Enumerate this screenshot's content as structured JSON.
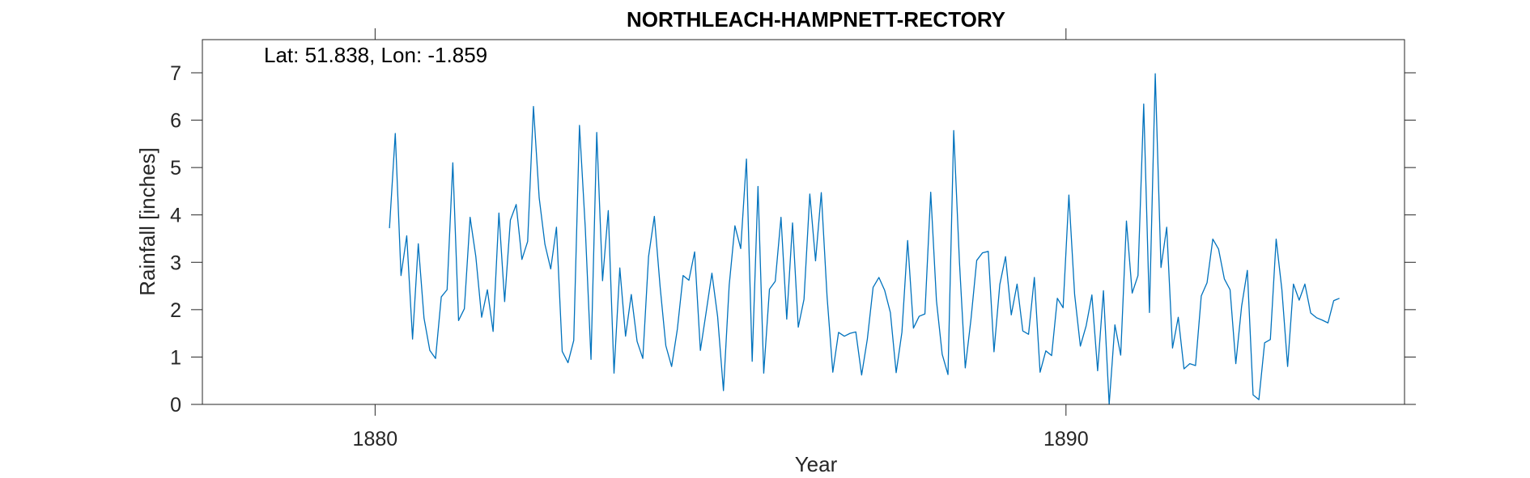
{
  "chart_data": {
    "type": "line",
    "title": "NORTHLEACH-HAMPNETT-RECTORY",
    "annotation": "Lat: 51.838, Lon: -1.859",
    "xlabel": "Year",
    "ylabel": "Rainfall [inches]",
    "xlim": [
      1877.5,
      1894.9
    ],
    "ylim": [
      0,
      7.7
    ],
    "xticks": [
      1880,
      1890
    ],
    "yticks": [
      0,
      1,
      2,
      3,
      4,
      5,
      6,
      7
    ],
    "grid": false,
    "colors": {
      "line": "#0072BD",
      "axes": "#262626"
    },
    "series": [
      {
        "x": [
          1880.208,
          1880.292,
          1880.375,
          1880.458,
          1880.542,
          1880.625,
          1880.708,
          1880.792,
          1880.875,
          1880.958,
          1881.042,
          1881.125,
          1881.208,
          1881.292,
          1881.375,
          1881.458,
          1881.542,
          1881.625,
          1881.708,
          1881.792,
          1881.875,
          1881.958,
          1882.042,
          1882.125,
          1882.208,
          1882.292,
          1882.375,
          1882.458,
          1882.542,
          1882.625,
          1882.708,
          1882.792,
          1882.875,
          1882.958,
          1883.042,
          1883.125,
          1883.208,
          1883.292,
          1883.375,
          1883.458,
          1883.542,
          1883.625,
          1883.708,
          1883.792,
          1883.875,
          1883.958,
          1884.042,
          1884.125,
          1884.208,
          1884.292,
          1884.375,
          1884.458,
          1884.542,
          1884.625,
          1884.708,
          1884.792,
          1884.875,
          1884.958,
          1885.042,
          1885.125,
          1885.208,
          1885.292,
          1885.375,
          1885.458,
          1885.542,
          1885.625,
          1885.708,
          1885.792,
          1885.875,
          1885.958,
          1886.042,
          1886.125,
          1886.208,
          1886.292,
          1886.375,
          1886.458,
          1886.542,
          1886.625,
          1886.708,
          1886.792,
          1886.875,
          1886.958,
          1887.042,
          1887.125,
          1887.208,
          1887.292,
          1887.375,
          1887.458,
          1887.542,
          1887.625,
          1887.708,
          1887.792,
          1887.875,
          1887.958,
          1888.042,
          1888.125,
          1888.208,
          1888.292,
          1888.375,
          1888.458,
          1888.542,
          1888.625,
          1888.708,
          1888.792,
          1888.875,
          1888.958,
          1889.042,
          1889.125,
          1889.208,
          1889.292,
          1889.375,
          1889.458,
          1889.542,
          1889.625,
          1889.708,
          1889.792,
          1889.875,
          1889.958,
          1890.042,
          1890.125,
          1890.208,
          1890.292,
          1890.375,
          1890.458,
          1890.542,
          1890.625,
          1890.708,
          1890.792,
          1890.875,
          1890.958,
          1891.042,
          1891.125,
          1891.208,
          1891.292,
          1891.375,
          1891.458,
          1891.542,
          1891.625,
          1891.708,
          1891.792,
          1891.875,
          1891.958,
          1892.042,
          1892.125,
          1892.208,
          1892.292,
          1892.375,
          1892.458,
          1892.542,
          1892.625,
          1892.708,
          1892.792,
          1892.875,
          1892.958,
          1893.042,
          1893.125,
          1893.208,
          1893.292,
          1893.375,
          1893.458,
          1893.542,
          1893.625,
          1893.708,
          1893.792,
          1893.875,
          1893.958
        ],
        "y": [
          3.72,
          5.72,
          2.72,
          3.56,
          1.38,
          3.39,
          1.82,
          1.14,
          0.97,
          2.27,
          2.42,
          5.1,
          1.77,
          2.02,
          3.95,
          3.12,
          1.84,
          2.42,
          1.54,
          4.04,
          2.17,
          3.89,
          4.22,
          3.06,
          3.44,
          6.29,
          4.36,
          3.38,
          2.86,
          3.74,
          1.12,
          0.88,
          1.35,
          5.89,
          3.73,
          0.95,
          5.74,
          2.61,
          4.09,
          0.66,
          2.88,
          1.44,
          2.32,
          1.33,
          0.97,
          3.12,
          3.97,
          2.49,
          1.24,
          0.8,
          1.59,
          2.72,
          2.62,
          3.22,
          1.14,
          1.95,
          2.77,
          1.85,
          0.29,
          2.51,
          3.77,
          3.29,
          5.18,
          0.91,
          4.6,
          0.66,
          2.43,
          2.6,
          3.95,
          1.8,
          3.83,
          1.63,
          2.22,
          4.44,
          3.03,
          4.47,
          2.27,
          0.68,
          1.52,
          1.44,
          1.5,
          1.53,
          0.62,
          1.38,
          2.47,
          2.68,
          2.41,
          1.94,
          0.67,
          1.52,
          3.46,
          1.61,
          1.86,
          1.91,
          4.48,
          2.19,
          1.06,
          0.63,
          5.78,
          3.0,
          0.77,
          1.8,
          3.04,
          3.2,
          3.23,
          1.11,
          2.53,
          3.12,
          1.89,
          2.54,
          1.55,
          1.48,
          2.68,
          0.68,
          1.13,
          1.03,
          2.24,
          2.04,
          4.42,
          2.32,
          1.23,
          1.66,
          2.31,
          0.71,
          2.4,
          0.0,
          1.68,
          1.04,
          3.87,
          2.35,
          2.72,
          6.34,
          1.94,
          6.98,
          2.89,
          3.74,
          1.19,
          1.84,
          0.75,
          0.86,
          0.82,
          2.29,
          2.57,
          3.49,
          3.28,
          2.65,
          2.42,
          0.86,
          2.07,
          2.83,
          0.2,
          0.1,
          1.3,
          1.37,
          3.49,
          2.42,
          0.8,
          2.54,
          2.2,
          2.54,
          1.93,
          1.83,
          1.78,
          1.72,
          2.19,
          2.24
        ]
      }
    ]
  }
}
